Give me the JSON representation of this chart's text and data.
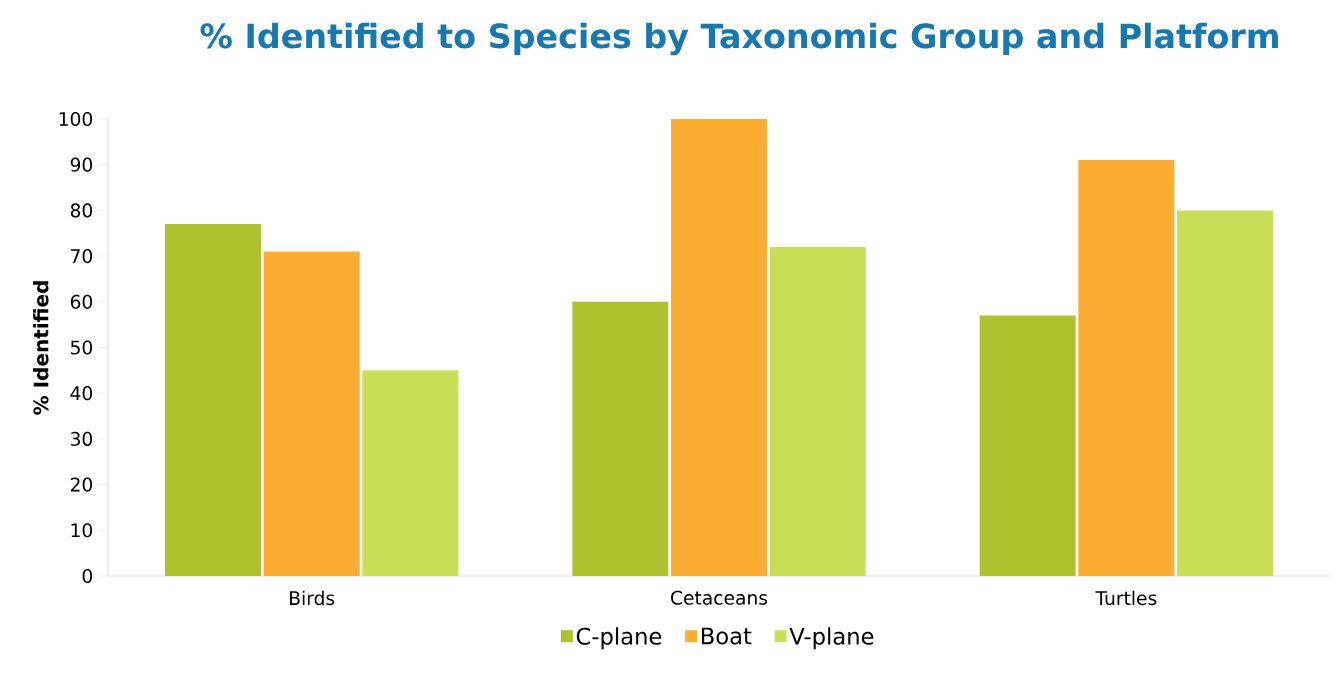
{
  "chart_data": {
    "type": "bar",
    "title": "% Identified to Species by Taxonomic Group and Platform",
    "ylabel": "% Identified",
    "categories": [
      "Birds",
      "Cetaceans",
      "Turtles"
    ],
    "series": [
      {
        "name": "C-plane",
        "color": "#aec12e",
        "values": [
          77,
          60,
          57
        ]
      },
      {
        "name": "Boat",
        "color": "#fbae33",
        "values": [
          71,
          100,
          91
        ]
      },
      {
        "name": "V-plane",
        "color": "#cadd56",
        "values": [
          45,
          72,
          80
        ]
      }
    ],
    "ylim": [
      0,
      100
    ],
    "yticks": [
      0,
      10,
      20,
      30,
      40,
      50,
      60,
      70,
      80,
      90,
      100
    ],
    "grid": false,
    "legend": "bottom"
  }
}
